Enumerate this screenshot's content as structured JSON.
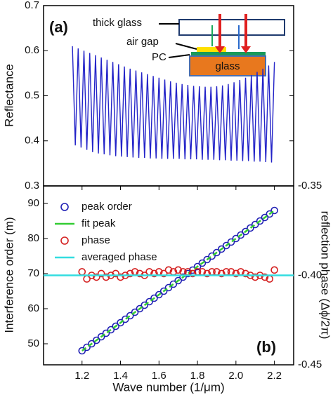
{
  "chart_data": [
    {
      "type": "line",
      "panel_label": "(a)",
      "ylabel": "Reflectance",
      "xlim": [
        1.0,
        2.3
      ],
      "ylim": [
        0.3,
        0.7
      ],
      "yticks": [
        0.3,
        0.4,
        0.5,
        0.6,
        0.7
      ],
      "inset_labels": [
        "thick glass",
        "air gap",
        "PC",
        "glass"
      ],
      "color": "#2323c8",
      "x": [
        1.15,
        1.165,
        1.18,
        1.195,
        1.21,
        1.225,
        1.24,
        1.255,
        1.27,
        1.285,
        1.3,
        1.315,
        1.33,
        1.345,
        1.36,
        1.375,
        1.39,
        1.405,
        1.42,
        1.435,
        1.45,
        1.465,
        1.48,
        1.495,
        1.51,
        1.525,
        1.54,
        1.555,
        1.57,
        1.585,
        1.6,
        1.615,
        1.63,
        1.645,
        1.66,
        1.675,
        1.69,
        1.705,
        1.72,
        1.735,
        1.75,
        1.765,
        1.78,
        1.795,
        1.81,
        1.825,
        1.84,
        1.855,
        1.87,
        1.885,
        1.9,
        1.915,
        1.93,
        1.945,
        1.96,
        1.975,
        1.99,
        2.005,
        2.02,
        2.035,
        2.05,
        2.065,
        2.08,
        2.095,
        2.11,
        2.125,
        2.14,
        2.155,
        2.17,
        2.185,
        2.2
      ],
      "values": [
        0.61,
        0.39,
        0.605,
        0.385,
        0.6,
        0.38,
        0.595,
        0.375,
        0.59,
        0.372,
        0.585,
        0.37,
        0.58,
        0.368,
        0.575,
        0.366,
        0.57,
        0.365,
        0.565,
        0.364,
        0.56,
        0.363,
        0.556,
        0.362,
        0.552,
        0.362,
        0.548,
        0.361,
        0.544,
        0.361,
        0.54,
        0.36,
        0.536,
        0.36,
        0.532,
        0.36,
        0.529,
        0.36,
        0.526,
        0.359,
        0.524,
        0.359,
        0.522,
        0.359,
        0.521,
        0.358,
        0.52,
        0.358,
        0.52,
        0.358,
        0.521,
        0.357,
        0.523,
        0.357,
        0.526,
        0.356,
        0.53,
        0.356,
        0.535,
        0.355,
        0.54,
        0.355,
        0.546,
        0.354,
        0.553,
        0.354,
        0.56,
        0.353,
        0.567,
        0.352,
        0.575
      ]
    },
    {
      "type": "line",
      "panel_label": "(b)",
      "xlabel": "Wave number (1/μm)",
      "ylabel": "Interference order (m)",
      "y2label": "reflection phase (Δϕ/2π)",
      "xlim": [
        1.0,
        2.3
      ],
      "xticks": [
        1.2,
        1.4,
        1.6,
        1.8,
        {
          "value": 2.0,
          "label": "2.0"
        },
        2.2
      ],
      "ylim": [
        44,
        95
      ],
      "yticks": [
        50,
        60,
        70,
        80,
        90
      ],
      "y2lim": [
        -0.45,
        -0.35
      ],
      "y2ticks": [
        -0.35,
        {
          "value": -0.4,
          "label": "-0.40"
        },
        -0.45
      ],
      "legend": "upper left",
      "series": [
        {
          "name": "peak order",
          "color": "#1f1fb4",
          "style": "circles",
          "x": [
            1.2,
            1.225,
            1.25,
            1.275,
            1.3,
            1.325,
            1.35,
            1.375,
            1.4,
            1.425,
            1.45,
            1.475,
            1.5,
            1.525,
            1.55,
            1.575,
            1.6,
            1.625,
            1.65,
            1.675,
            1.7,
            1.725,
            1.75,
            1.775,
            1.8,
            1.825,
            1.85,
            1.875,
            1.9,
            1.925,
            1.95,
            1.975,
            2.0,
            2.025,
            2.05,
            2.075,
            2.1,
            2.125,
            2.15,
            2.175,
            2.2
          ],
          "values": [
            48,
            49,
            50,
            51,
            52,
            53,
            54,
            55,
            56,
            57,
            58,
            59,
            60,
            61,
            62,
            63,
            64,
            65,
            66,
            67,
            68,
            69,
            70,
            71,
            72,
            73,
            74,
            75,
            76,
            77,
            78,
            79,
            80,
            81,
            82,
            83,
            84,
            85,
            86,
            87,
            88
          ]
        },
        {
          "name": "fit peak",
          "color": "#33cc33",
          "style": "dashed",
          "x": [
            1.2,
            2.2
          ],
          "values": [
            48,
            88
          ]
        },
        {
          "name": "phase",
          "color": "#d42020",
          "style": "circles",
          "axis": "y2",
          "x": [
            1.2,
            1.225,
            1.25,
            1.275,
            1.3,
            1.325,
            1.35,
            1.375,
            1.4,
            1.425,
            1.45,
            1.475,
            1.5,
            1.525,
            1.55,
            1.575,
            1.6,
            1.625,
            1.65,
            1.675,
            1.7,
            1.725,
            1.75,
            1.775,
            1.8,
            1.825,
            1.85,
            1.875,
            1.9,
            1.925,
            1.95,
            1.975,
            2.0,
            2.025,
            2.05,
            2.075,
            2.1,
            2.125,
            2.15,
            2.175,
            2.2
          ],
          "values": [
            -0.398,
            -0.402,
            -0.4,
            -0.401,
            -0.399,
            -0.401,
            -0.4,
            -0.399,
            -0.401,
            -0.4,
            -0.399,
            -0.398,
            -0.399,
            -0.4,
            -0.398,
            -0.399,
            -0.398,
            -0.399,
            -0.397,
            -0.398,
            -0.397,
            -0.398,
            -0.398,
            -0.399,
            -0.398,
            -0.398,
            -0.399,
            -0.398,
            -0.398,
            -0.399,
            -0.398,
            -0.398,
            -0.399,
            -0.398,
            -0.399,
            -0.4,
            -0.401,
            -0.4,
            -0.401,
            -0.402,
            -0.397
          ]
        },
        {
          "name": "averaged phase",
          "color": "#33dde0",
          "style": "solid",
          "axis": "y2",
          "x": [
            1.0,
            2.3
          ],
          "values": [
            -0.4,
            -0.4
          ]
        }
      ]
    }
  ]
}
